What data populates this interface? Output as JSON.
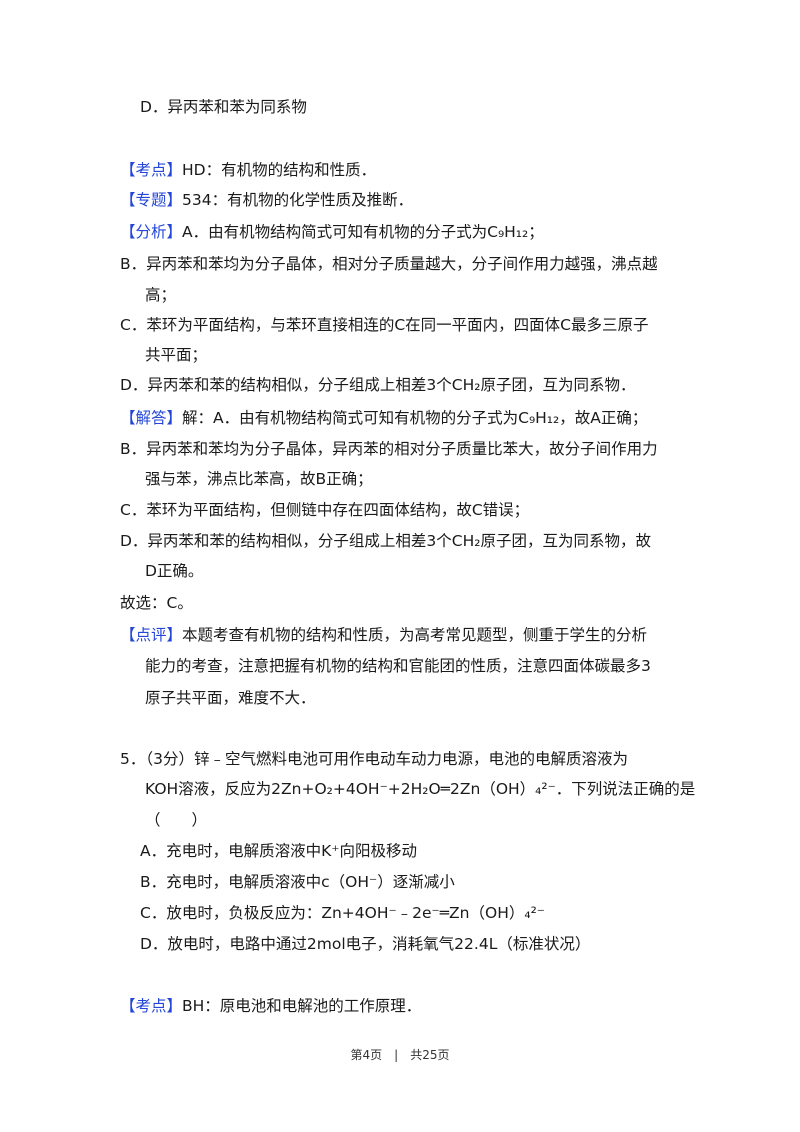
{
  "colors": {
    "tag": "#2346d8",
    "text": "#1a1a1a"
  },
  "lines": {
    "prev_d": "D．异丙苯和苯为同系物",
    "kaodian_tag": "【考点】",
    "kaodian": "HD：有机物的结构和性质．",
    "zhuanti_tag": "【专题】",
    "zhuanti": "534：有机物的化学性质及推断．",
    "fenxi_tag": "【分析】",
    "fenxi_a": "A．由有机物结构简式可知有机物的分子式为C₉H₁₂；",
    "fenxi_b1": "B．异丙苯和苯均为分子晶体，相对分子质量越大，分子间作用力越强，沸点越",
    "fenxi_b2": "高；",
    "fenxi_c1": "C．苯环为平面结构，与苯环直接相连的C在同一平面内，四面体C最多三原子",
    "fenxi_c2": "共平面；",
    "fenxi_d": "D．异丙苯和苯的结构相似，分子组成上相差3个CH₂原子团，互为同系物．",
    "jieda_tag": "【解答】",
    "jieda_a": "解：A．由有机物结构简式可知有机物的分子式为C₉H₁₂，故A正确；",
    "jieda_b1": "B．异丙苯和苯均为分子晶体，异丙苯的相对分子质量比苯大，故分子间作用力",
    "jieda_b2": "强与苯，沸点比苯高，故B正确；",
    "jieda_c": "C．苯环为平面结构，但侧链中存在四面体结构，故C错误；",
    "jieda_d1": "D．异丙苯和苯的结构相似，分子组成上相差3个CH₂原子团，互为同系物，故",
    "jieda_d2": "D正确。",
    "answer": "故选：C。",
    "dianping_tag": "【点评】",
    "dianping1": "本题考查有机物的结构和性质，为高考常见题型，侧重于学生的分析",
    "dianping2": "能力的考查，注意把握有机物的结构和官能团的性质，注意四面体碳最多3",
    "dianping3": "原子共平面，难度不大．",
    "q5_1": "5．（3分）锌﹣空气燃料电池可用作电动车动力电源，电池的电解质溶液为",
    "q5_2": "KOH溶液，反应为2Zn+O₂+4OH⁻+2H₂O═2Zn（OH）₄²⁻．下列说法正确的是",
    "q5_3": "（　　）",
    "q5_a": "A．充电时，电解质溶液中K⁺向阳极移动",
    "q5_b": "B．充电时，电解质溶液中c（OH⁻）逐渐减小",
    "q5_c": "C．放电时，负极反应为：Zn+4OH⁻﹣2e⁻═Zn（OH）₄²⁻",
    "q5_d": "D．放电时，电路中通过2mol电子，消耗氧气22.4L（标准状况）",
    "q5_kaodian_tag": "【考点】",
    "q5_kaodian": "BH：原电池和电解池的工作原理．"
  },
  "footer": "第4页　|　共25页"
}
